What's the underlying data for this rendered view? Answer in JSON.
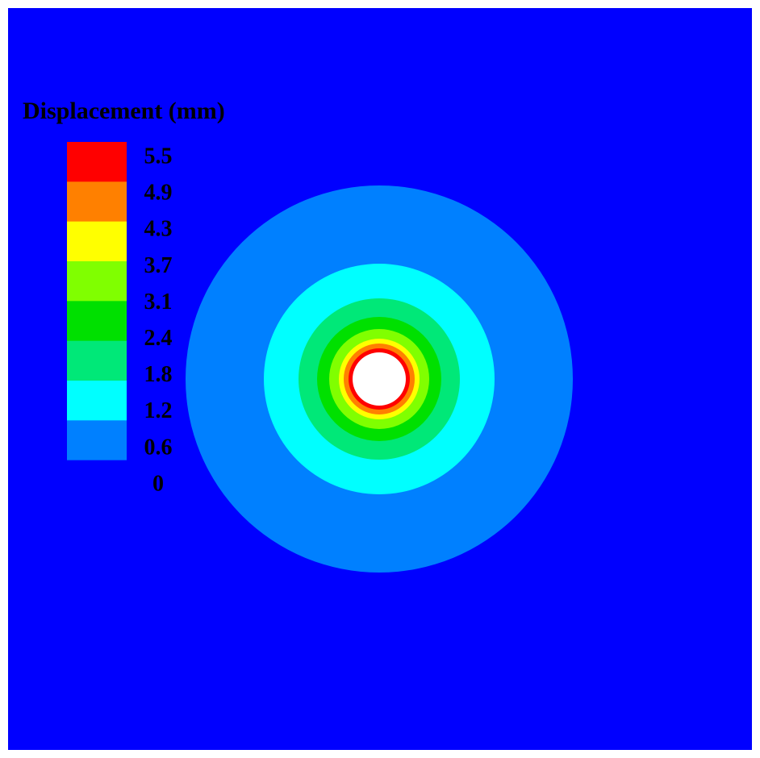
{
  "legend": {
    "title": "Displacement (mm)",
    "labels": [
      "5.5",
      "4.9",
      "4.3",
      "3.7",
      "3.1",
      "2.4",
      "1.8",
      "1.2",
      "0.6",
      "0"
    ],
    "colors": [
      "#ff0000",
      "#ff8000",
      "#ffff00",
      "#80ff00",
      "#00e000",
      "#00e878",
      "#00ffff",
      "#0080ff",
      "#0000ff"
    ]
  }
}
